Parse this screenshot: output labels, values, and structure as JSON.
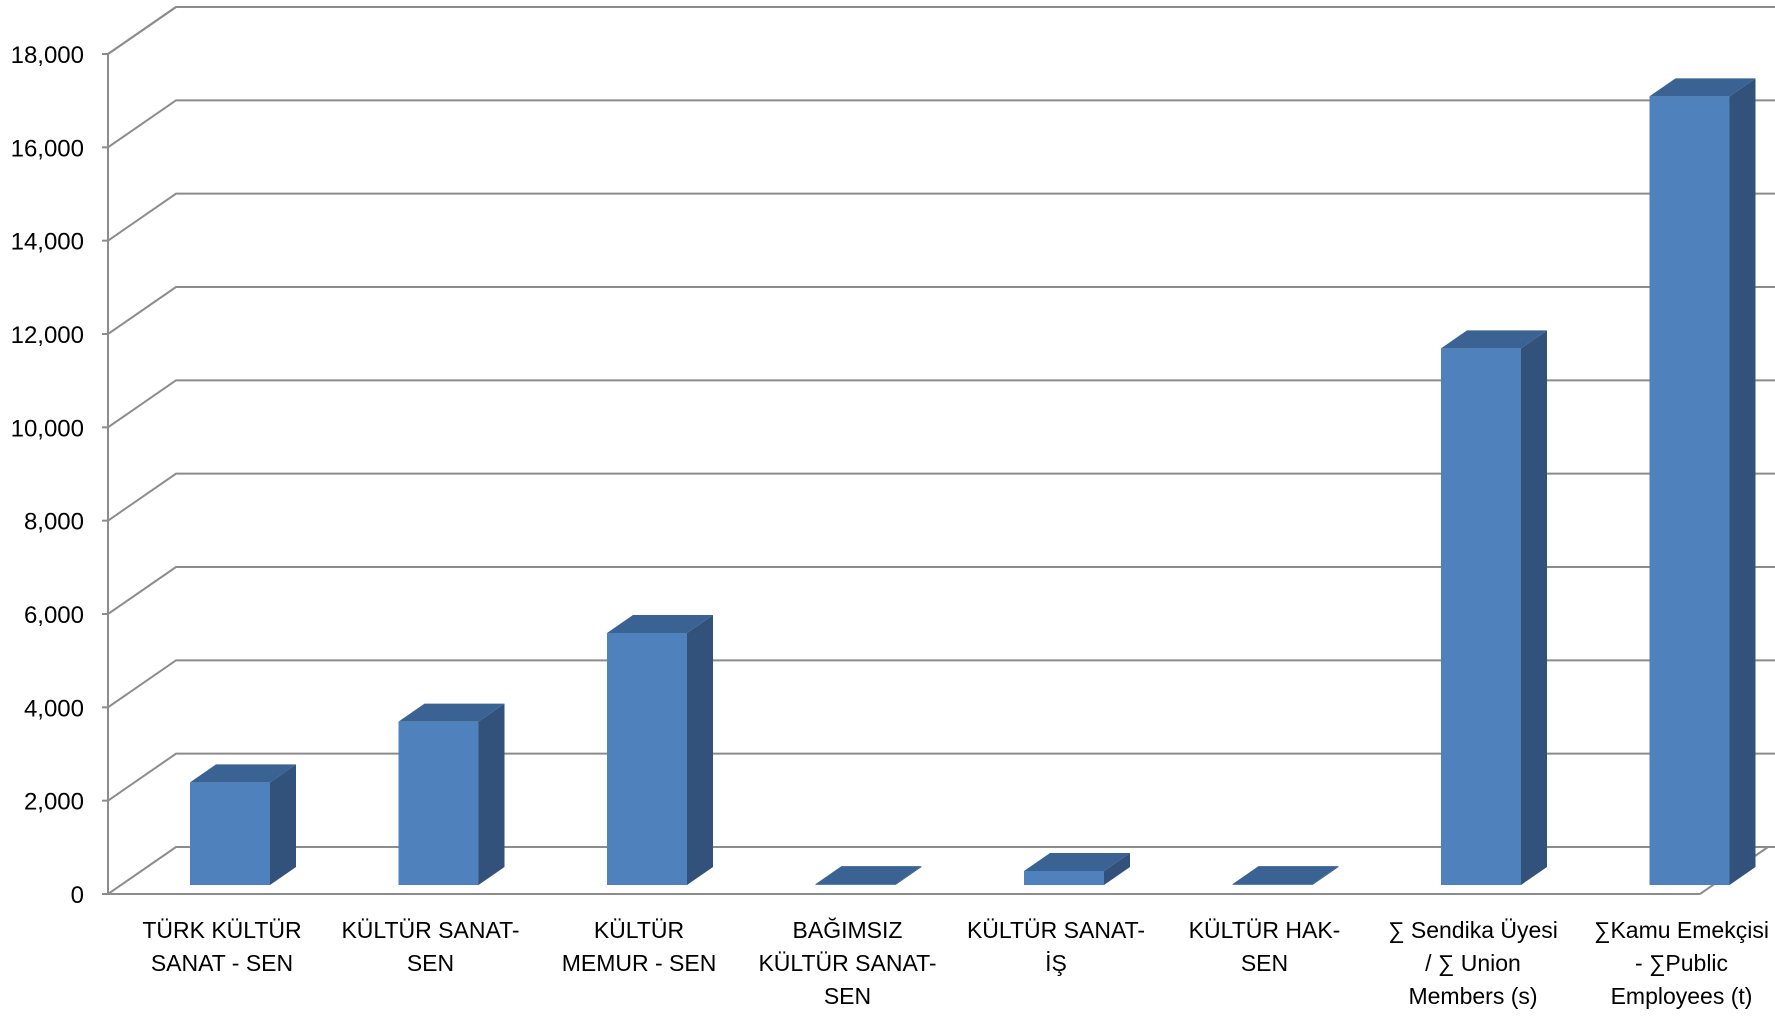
{
  "chart_data": {
    "type": "bar",
    "title": "",
    "xlabel": "",
    "ylabel": "",
    "ylim": [
      0,
      18000
    ],
    "yticks": [
      0,
      2000,
      4000,
      6000,
      8000,
      10000,
      12000,
      14000,
      16000,
      18000
    ],
    "ytick_labels": [
      "0",
      "2,000",
      "4,000",
      "6,000",
      "8,000",
      "10,000",
      "12,000",
      "14,000",
      "16,000",
      "18,000"
    ],
    "categories": [
      [
        "TÜRK KÜLTÜR",
        "SANAT - SEN"
      ],
      [
        "KÜLTÜR SANAT-",
        "SEN"
      ],
      [
        "KÜLTÜR",
        "MEMUR - SEN"
      ],
      [
        "BAĞIMSIZ",
        "KÜLTÜR SANAT-",
        "SEN"
      ],
      [
        "KÜLTÜR SANAT-",
        "İŞ"
      ],
      [
        "KÜLTÜR HAK-",
        "SEN"
      ],
      [
        "∑ Sendika Üyesi",
        "/ ∑ Union",
        "Members (s)"
      ],
      [
        "∑Kamu Emekçisi",
        "- ∑Public",
        "Employees (t)"
      ]
    ],
    "values": [
      2200,
      3500,
      5400,
      20,
      300,
      20,
      11500,
      16900
    ],
    "style": "3d-column",
    "grid": true,
    "legend": "none",
    "colors": {
      "front": "#4f81bd",
      "top": "#3a6394",
      "side": "#32527b",
      "grid": "#8c8c8c"
    }
  }
}
